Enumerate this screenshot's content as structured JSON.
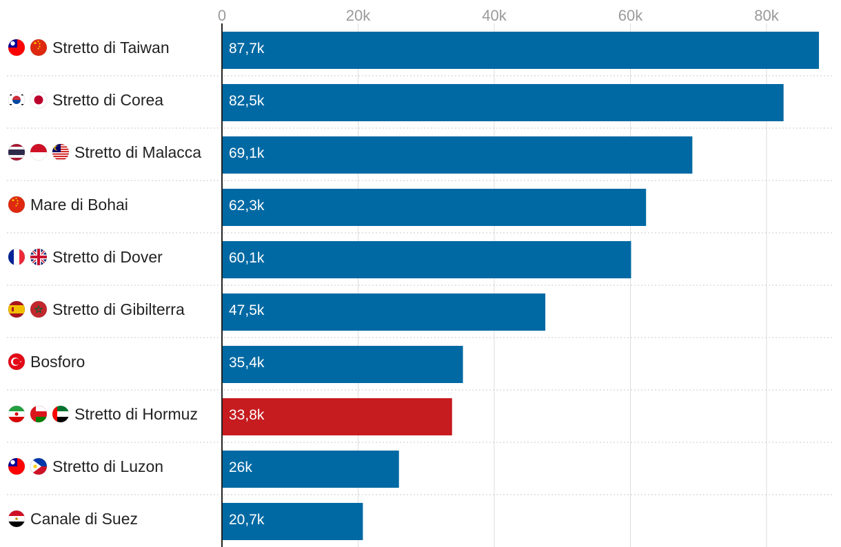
{
  "chart_data": {
    "type": "bar",
    "orientation": "horizontal",
    "title": "",
    "xlabel": "",
    "ylabel": "",
    "xlim": [
      0,
      88000
    ],
    "ticks": [
      {
        "value": 0,
        "label": "0"
      },
      {
        "value": 20000,
        "label": "20k"
      },
      {
        "value": 40000,
        "label": "40k"
      },
      {
        "value": 60000,
        "label": "60k"
      },
      {
        "value": 80000,
        "label": "80k"
      }
    ],
    "grid": true,
    "default_color": "#0069a3",
    "categories": [
      {
        "label": "Stretto di Taiwan",
        "value": 87700,
        "value_label": "87,7k",
        "flags": [
          "taiwan",
          "china"
        ]
      },
      {
        "label": "Stretto di Corea",
        "value": 82500,
        "value_label": "82,5k",
        "flags": [
          "south-korea",
          "japan"
        ]
      },
      {
        "label": "Stretto di Malacca",
        "value": 69100,
        "value_label": "69,1k",
        "flags": [
          "thailand",
          "indonesia",
          "malaysia"
        ]
      },
      {
        "label": "Mare di Bohai",
        "value": 62300,
        "value_label": "62,3k",
        "flags": [
          "china"
        ]
      },
      {
        "label": "Stretto di Dover",
        "value": 60100,
        "value_label": "60,1k",
        "flags": [
          "france",
          "uk"
        ]
      },
      {
        "label": "Stretto di Gibilterra",
        "value": 47500,
        "value_label": "47,5k",
        "flags": [
          "spain",
          "morocco"
        ]
      },
      {
        "label": "Bosforo",
        "value": 35400,
        "value_label": "35,4k",
        "flags": [
          "turkey"
        ]
      },
      {
        "label": "Stretto di Hormuz",
        "value": 33800,
        "value_label": "33,8k",
        "flags": [
          "iran",
          "oman",
          "uae"
        ],
        "color": "#c61b1f"
      },
      {
        "label": "Stretto di Luzon",
        "value": 26000,
        "value_label": "26k",
        "flags": [
          "taiwan",
          "philippines"
        ]
      },
      {
        "label": "Canale di Suez",
        "value": 20700,
        "value_label": "20,7k",
        "flags": [
          "egypt"
        ]
      }
    ]
  }
}
